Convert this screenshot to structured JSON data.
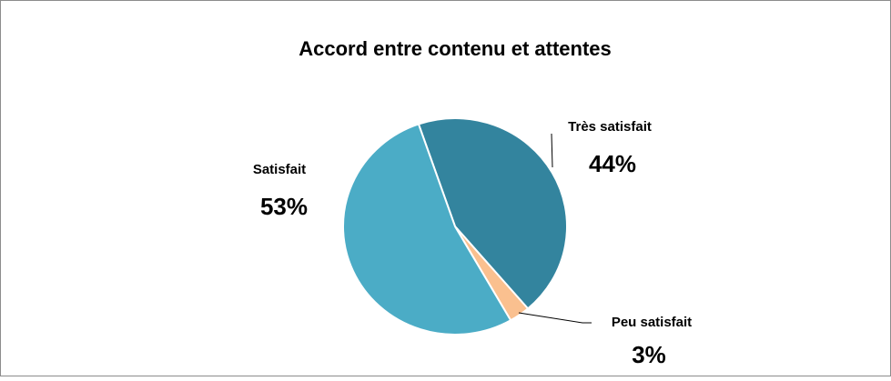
{
  "chart_data": {
    "type": "pie",
    "title": "Accord entre contenu et attentes",
    "categories": [
      "Très satisfait",
      "Peu satisfait",
      "Satisfait"
    ],
    "values": [
      44,
      3,
      53
    ],
    "value_labels": [
      "44%",
      "3%",
      "53%"
    ],
    "colors": [
      "#33849e",
      "#fac08f",
      "#4bacc6"
    ]
  }
}
